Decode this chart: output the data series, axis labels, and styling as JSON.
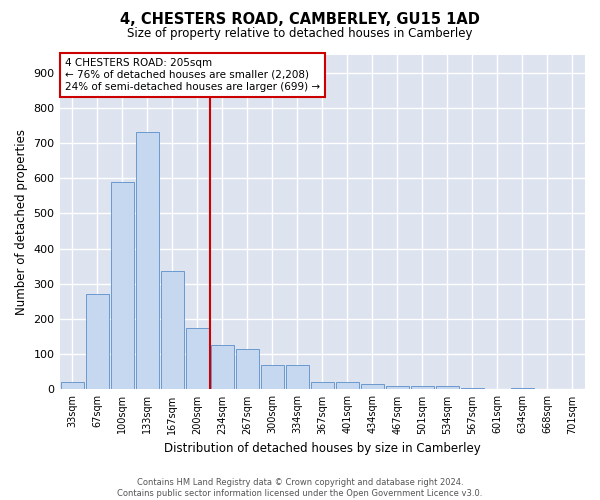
{
  "title1": "4, CHESTERS ROAD, CAMBERLEY, GU15 1AD",
  "title2": "Size of property relative to detached houses in Camberley",
  "xlabel": "Distribution of detached houses by size in Camberley",
  "ylabel": "Number of detached properties",
  "categories": [
    "33sqm",
    "67sqm",
    "100sqm",
    "133sqm",
    "167sqm",
    "200sqm",
    "234sqm",
    "267sqm",
    "300sqm",
    "334sqm",
    "367sqm",
    "401sqm",
    "434sqm",
    "467sqm",
    "501sqm",
    "534sqm",
    "567sqm",
    "601sqm",
    "634sqm",
    "668sqm",
    "701sqm"
  ],
  "values": [
    20,
    270,
    590,
    730,
    335,
    175,
    125,
    115,
    70,
    70,
    20,
    20,
    15,
    10,
    10,
    10,
    5,
    0,
    5,
    0,
    0
  ],
  "bar_color": "#c5d8f0",
  "bar_edge_color": "#5b8fc9",
  "plot_bg_color": "#dde3ef",
  "fig_bg_color": "#ffffff",
  "grid_color": "#ffffff",
  "vline_color": "#cc0000",
  "annotation_text": "4 CHESTERS ROAD: 205sqm\n← 76% of detached houses are smaller (2,208)\n24% of semi-detached houses are larger (699) →",
  "annotation_box_color": "#ffffff",
  "annotation_box_edge": "#cc0000",
  "ylim": [
    0,
    950
  ],
  "yticks": [
    0,
    100,
    200,
    300,
    400,
    500,
    600,
    700,
    800,
    900
  ],
  "footer1": "Contains HM Land Registry data © Crown copyright and database right 2024.",
  "footer2": "Contains public sector information licensed under the Open Government Licence v3.0."
}
